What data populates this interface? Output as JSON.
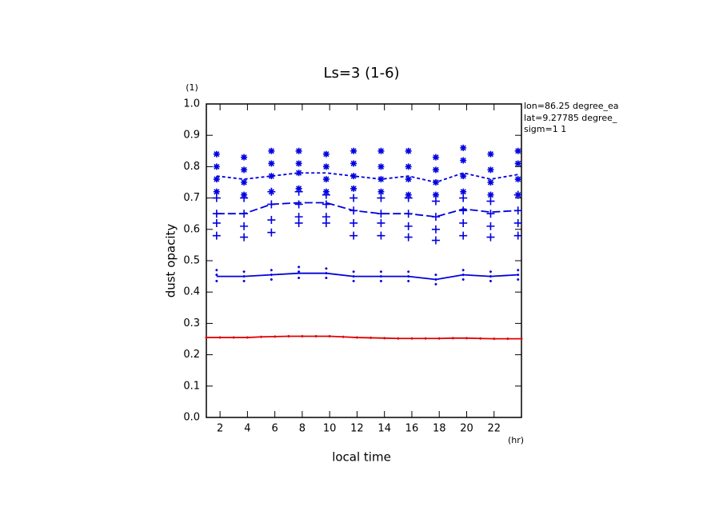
{
  "chart_data": {
    "type": "line",
    "title": "Ls=3 (1-6)",
    "x_label": "local time",
    "y_label": "dust opacity",
    "x_unit": "(hr)",
    "y_unit": "(1)",
    "annotations": [
      "lon=86.25 degree_ea",
      "lat=9.27785 degree_",
      "sigm=1 1"
    ],
    "xlim": [
      1,
      24
    ],
    "xticks": [
      2,
      4,
      6,
      8,
      10,
      12,
      14,
      16,
      18,
      20,
      22
    ],
    "ylim": [
      0,
      1
    ],
    "yticks": [
      {
        "value": 0,
        "label": "0.0"
      },
      0.1,
      0.2,
      0.3,
      0.4,
      0.5,
      0.6,
      0.7,
      0.8,
      0.9,
      {
        "value": 1,
        "label": "1.0"
      }
    ],
    "series": [
      {
        "color": "#e00000",
        "style": "solid",
        "marker": "dot",
        "x": [
          1,
          2,
          3,
          4,
          5,
          6,
          7,
          8,
          9,
          10,
          11,
          12,
          13,
          14,
          15,
          16,
          17,
          18,
          19,
          20,
          21,
          22,
          23,
          24
        ],
        "values": [
          0.255,
          0.255,
          0.255,
          0.255,
          0.257,
          0.258,
          0.259,
          0.259,
          0.259,
          0.259,
          0.257,
          0.255,
          0.254,
          0.253,
          0.252,
          0.252,
          0.252,
          0.252,
          0.253,
          0.253,
          0.252,
          0.251,
          0.251,
          0.251
        ]
      },
      {
        "color": "#0000e0",
        "style": "solid",
        "marker": "none",
        "x": [
          1.75,
          3.75,
          5.75,
          7.75,
          9.75,
          11.75,
          13.75,
          15.75,
          17.75,
          19.75,
          21.75,
          23.75
        ],
        "values": [
          0.45,
          0.45,
          0.455,
          0.46,
          0.46,
          0.45,
          0.45,
          0.45,
          0.44,
          0.455,
          0.45,
          0.455
        ]
      },
      {
        "color": "#0000e0",
        "style": "longdash",
        "marker": "none",
        "x": [
          1.75,
          3.75,
          5.75,
          7.75,
          9.75,
          11.75,
          13.75,
          15.75,
          17.75,
          19.75,
          21.75,
          23.75
        ],
        "values": [
          0.65,
          0.65,
          0.68,
          0.685,
          0.685,
          0.66,
          0.65,
          0.65,
          0.64,
          0.665,
          0.655,
          0.66
        ]
      },
      {
        "color": "#0000e0",
        "style": "shortdash",
        "marker": "none",
        "x": [
          1.75,
          3.75,
          5.75,
          7.75,
          9.75,
          11.75,
          13.75,
          15.75,
          17.75,
          19.75,
          21.75,
          23.75
        ],
        "values": [
          0.77,
          0.76,
          0.77,
          0.78,
          0.78,
          0.77,
          0.76,
          0.77,
          0.75,
          0.78,
          0.76,
          0.775
        ]
      },
      {
        "color": "#0000e0",
        "style": "none",
        "marker": "star",
        "x": [
          1.75,
          1.75,
          1.75,
          1.75,
          3.75,
          3.75,
          3.75,
          3.75,
          5.75,
          5.75,
          5.75,
          5.75,
          7.75,
          7.75,
          7.75,
          7.75,
          9.75,
          9.75,
          9.75,
          9.75,
          11.75,
          11.75,
          11.75,
          11.75,
          13.75,
          13.75,
          13.75,
          13.75,
          15.75,
          15.75,
          15.75,
          15.75,
          17.75,
          17.75,
          17.75,
          17.75,
          19.75,
          19.75,
          19.75,
          19.75,
          21.75,
          21.75,
          21.75,
          21.75,
          23.75,
          23.75,
          23.75,
          23.75
        ],
        "values": [
          0.84,
          0.8,
          0.76,
          0.72,
          0.83,
          0.79,
          0.75,
          0.71,
          0.85,
          0.81,
          0.77,
          0.72,
          0.85,
          0.81,
          0.78,
          0.73,
          0.84,
          0.8,
          0.76,
          0.72,
          0.85,
          0.81,
          0.77,
          0.73,
          0.85,
          0.8,
          0.76,
          0.72,
          0.85,
          0.8,
          0.76,
          0.71,
          0.83,
          0.79,
          0.75,
          0.71,
          0.86,
          0.82,
          0.77,
          0.72,
          0.84,
          0.79,
          0.75,
          0.71,
          0.85,
          0.81,
          0.76,
          0.71
        ]
      },
      {
        "color": "#0000e0",
        "style": "none",
        "marker": "plus",
        "x": [
          1.75,
          1.75,
          1.75,
          1.75,
          3.75,
          3.75,
          3.75,
          3.75,
          5.75,
          5.75,
          5.75,
          5.75,
          7.75,
          7.75,
          7.75,
          7.75,
          9.75,
          9.75,
          9.75,
          9.75,
          11.75,
          11.75,
          11.75,
          11.75,
          13.75,
          13.75,
          13.75,
          13.75,
          15.75,
          15.75,
          15.75,
          15.75,
          17.75,
          17.75,
          17.75,
          17.75,
          19.75,
          19.75,
          19.75,
          19.75,
          21.75,
          21.75,
          21.75,
          21.75,
          23.75,
          23.75,
          23.75,
          23.75
        ],
        "values": [
          0.7,
          0.65,
          0.62,
          0.58,
          0.7,
          0.65,
          0.61,
          0.575,
          0.72,
          0.68,
          0.63,
          0.59,
          0.72,
          0.68,
          0.64,
          0.62,
          0.71,
          0.68,
          0.64,
          0.62,
          0.7,
          0.66,
          0.62,
          0.58,
          0.7,
          0.65,
          0.62,
          0.58,
          0.7,
          0.65,
          0.61,
          0.575,
          0.69,
          0.64,
          0.6,
          0.565,
          0.7,
          0.66,
          0.62,
          0.58,
          0.69,
          0.65,
          0.61,
          0.575,
          0.71,
          0.66,
          0.62,
          0.58
        ]
      },
      {
        "color": "#0000e0",
        "style": "none",
        "marker": "dot",
        "x": [
          1.75,
          1.75,
          1.75,
          3.75,
          3.75,
          3.75,
          5.75,
          5.75,
          5.75,
          7.75,
          7.75,
          7.75,
          9.75,
          9.75,
          9.75,
          11.75,
          11.75,
          11.75,
          13.75,
          13.75,
          13.75,
          15.75,
          15.75,
          15.75,
          17.75,
          17.75,
          17.75,
          19.75,
          19.75,
          19.75,
          21.75,
          21.75,
          21.75,
          23.75,
          23.75,
          23.75
        ],
        "values": [
          0.47,
          0.455,
          0.435,
          0.465,
          0.45,
          0.435,
          0.47,
          0.455,
          0.44,
          0.48,
          0.465,
          0.445,
          0.475,
          0.46,
          0.445,
          0.465,
          0.45,
          0.435,
          0.465,
          0.45,
          0.435,
          0.465,
          0.45,
          0.435,
          0.455,
          0.44,
          0.425,
          0.47,
          0.455,
          0.44,
          0.465,
          0.45,
          0.435,
          0.47,
          0.455,
          0.44
        ]
      }
    ]
  }
}
